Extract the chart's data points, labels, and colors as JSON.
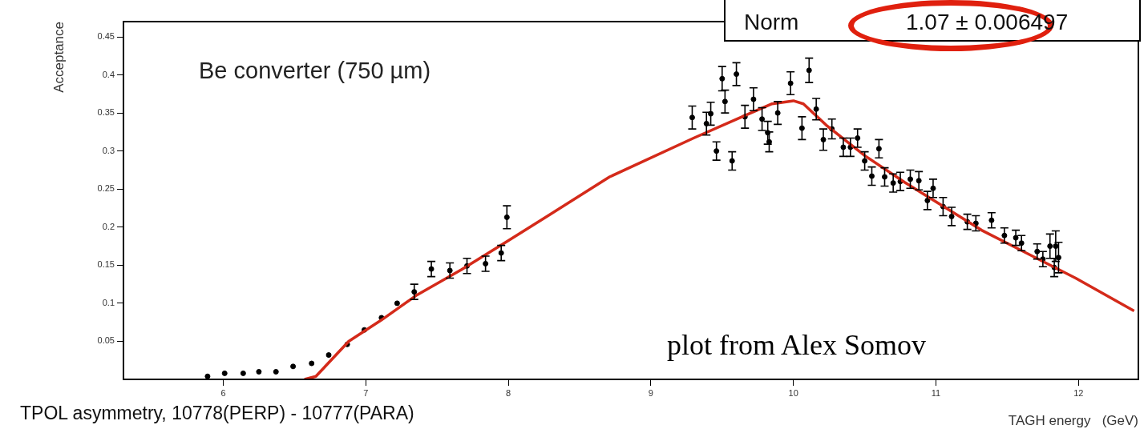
{
  "chart_data": {
    "type": "scatter",
    "xlabel": "TAGH energy   (GeV)",
    "ylabel": "Acceptance",
    "annotations": [
      "Be converter (750 µm)",
      "Norm",
      "1.07 ± 0.006497",
      "plot from Alex Somov",
      "TPOL asymmetry, 10778(PERP) - 10777(PARA)"
    ],
    "xlim": [
      5.3,
      12.42
    ],
    "xticks": [
      6,
      7,
      8,
      9,
      10,
      11,
      12
    ],
    "ylim": [
      0,
      0.47
    ],
    "yticks": [
      0.05,
      0.1,
      0.15,
      0.2,
      0.25,
      0.3,
      0.35,
      0.4,
      0.45
    ],
    "grid": false,
    "legend": false,
    "marker": "circle",
    "series": [
      {
        "type": "scatter",
        "color": "#000000",
        "x": [
          5.89,
          6.01,
          6.14,
          6.25,
          6.37,
          6.49,
          6.62,
          6.74,
          6.87,
          6.99,
          7.11,
          7.22,
          7.34,
          7.46,
          7.59,
          7.71,
          7.84,
          7.95,
          7.99,
          9.29,
          9.39,
          9.42,
          9.46,
          9.5,
          9.52,
          9.57,
          9.6,
          9.66,
          9.72,
          9.78,
          9.82,
          9.83,
          9.89,
          9.98,
          10.06,
          10.11,
          10.16,
          10.21,
          10.27,
          10.35,
          10.4,
          10.45,
          10.5,
          10.55,
          10.6,
          10.64,
          10.7,
          10.75,
          10.82,
          10.88,
          10.94,
          10.98,
          11.05,
          11.11,
          11.22,
          11.28,
          11.39,
          11.48,
          11.56,
          11.6,
          11.71,
          11.75,
          11.8,
          11.83,
          11.84,
          11.86
        ],
        "values": [
          0.004,
          0.008,
          0.008,
          0.01,
          0.01,
          0.017,
          0.021,
          0.032,
          0.046,
          0.065,
          0.081,
          0.1,
          0.115,
          0.145,
          0.143,
          0.149,
          0.152,
          0.166,
          0.213,
          0.344,
          0.336,
          0.349,
          0.3,
          0.395,
          0.365,
          0.287,
          0.401,
          0.345,
          0.368,
          0.342,
          0.324,
          0.312,
          0.35,
          0.389,
          0.33,
          0.406,
          0.355,
          0.315,
          0.329,
          0.305,
          0.305,
          0.317,
          0.287,
          0.267,
          0.303,
          0.266,
          0.258,
          0.26,
          0.263,
          0.261,
          0.235,
          0.251,
          0.227,
          0.214,
          0.207,
          0.205,
          0.209,
          0.189,
          0.186,
          0.179,
          0.168,
          0.158,
          0.175,
          0.147,
          0.175,
          0.16
        ],
        "errors": [
          null,
          null,
          null,
          null,
          null,
          null,
          null,
          null,
          null,
          null,
          null,
          null,
          0.01,
          0.01,
          0.01,
          0.01,
          0.01,
          0.01,
          0.015,
          0.015,
          0.015,
          0.015,
          0.012,
          0.016,
          0.015,
          0.012,
          0.015,
          0.015,
          0.015,
          0.015,
          0.015,
          0.013,
          0.015,
          0.015,
          0.015,
          0.016,
          0.014,
          0.014,
          0.013,
          0.012,
          0.012,
          0.012,
          0.012,
          0.012,
          0.012,
          0.012,
          0.012,
          0.012,
          0.012,
          0.012,
          0.012,
          0.012,
          0.012,
          0.012,
          0.01,
          0.01,
          0.01,
          0.01,
          0.01,
          0.01,
          0.01,
          0.01,
          0.016,
          0.012,
          0.02,
          0.02
        ]
      },
      {
        "type": "line",
        "color": "#d42a1a",
        "marker": "none",
        "x": [
          6.57,
          6.65,
          6.88,
          7.11,
          7.36,
          7.67,
          7.99,
          8.27,
          8.71,
          9.3,
          9.64,
          9.85,
          10.0,
          10.07,
          10.23,
          10.5,
          10.78,
          11.32,
          11.98,
          12.39
        ],
        "values": [
          0,
          0.004,
          0.05,
          0.078,
          0.111,
          0.144,
          0.181,
          0.214,
          0.266,
          0.317,
          0.345,
          0.362,
          0.366,
          0.362,
          0.334,
          0.294,
          0.259,
          0.196,
          0.133,
          0.09
        ]
      }
    ]
  }
}
